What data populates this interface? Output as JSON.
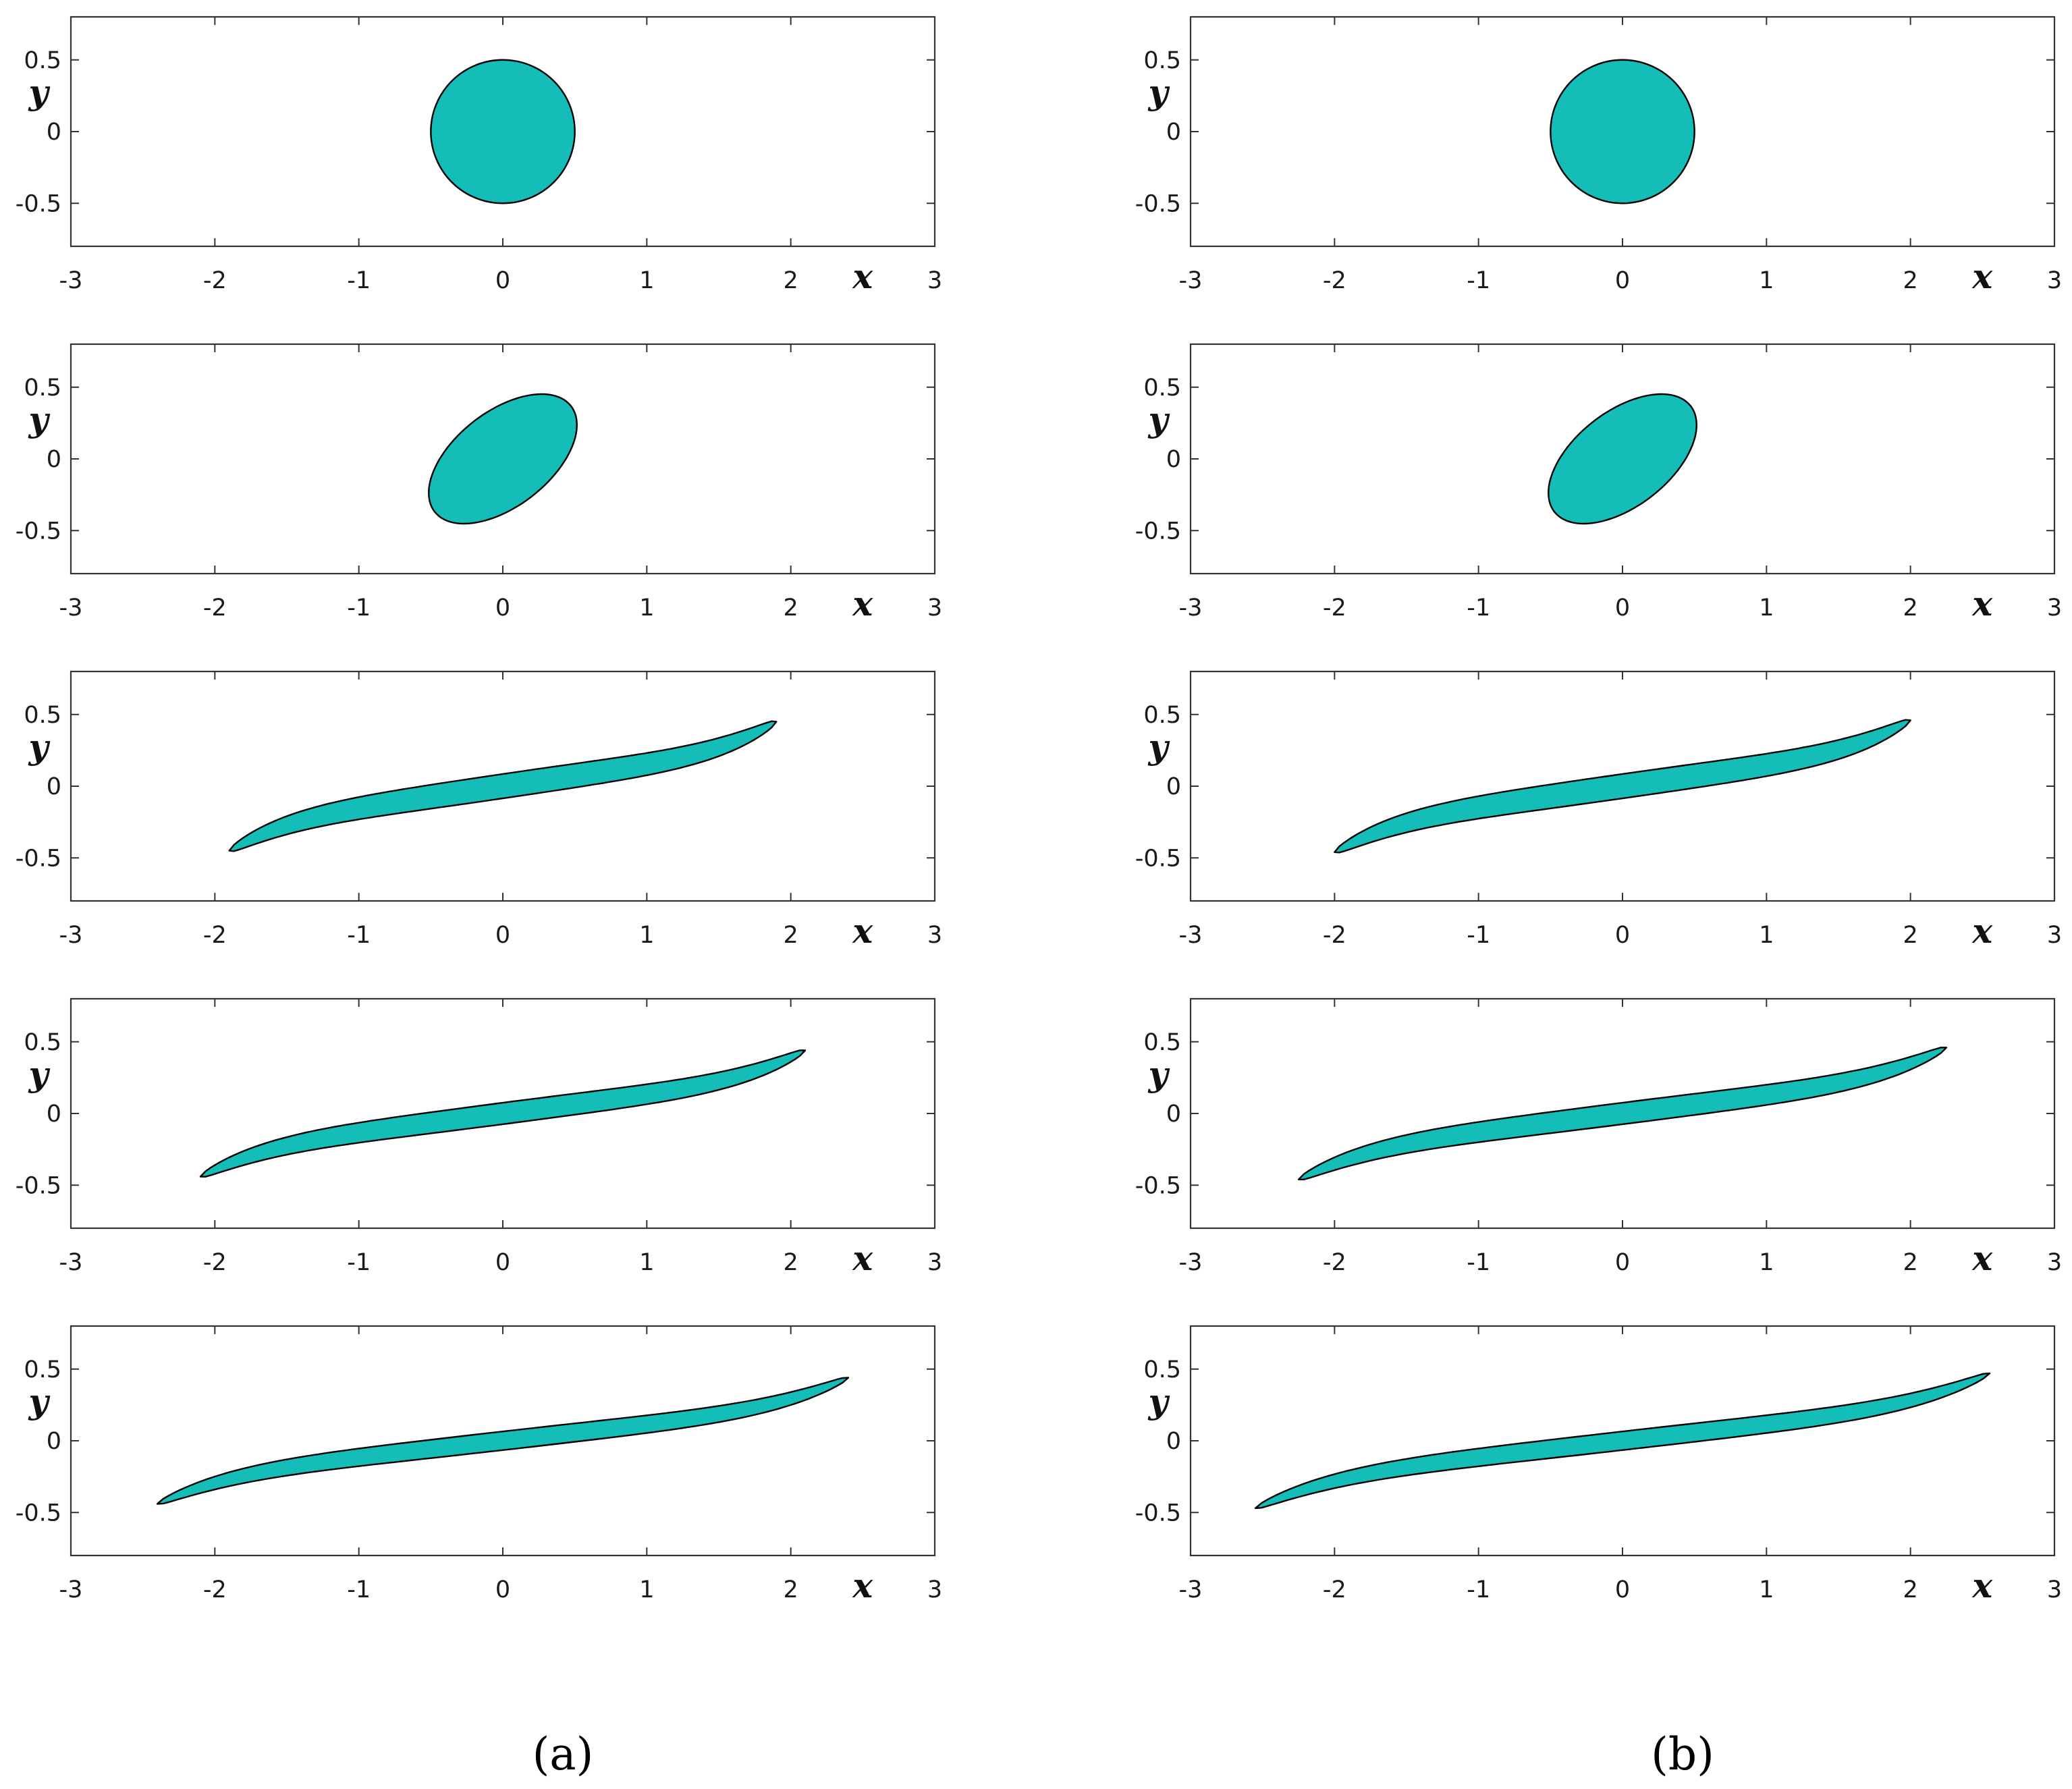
{
  "colors": {
    "fill": "#14bdb8",
    "stroke": "#000000",
    "axis": "#333333"
  },
  "panel_labels": [
    "(a)",
    "(b)"
  ],
  "chart_data": [
    {
      "type": "shape",
      "column": "a",
      "row": 1,
      "xlabel": "x",
      "ylabel": "y",
      "xlim": [
        -3,
        3
      ],
      "ylim": [
        -0.8,
        0.8
      ],
      "xticks": [
        "-3",
        "-2",
        "-1",
        "0",
        "1",
        "2",
        "3"
      ],
      "yticks": [
        "0.5",
        "0",
        "-0.5"
      ],
      "shape": {
        "kind": "circle",
        "center": [
          0,
          0
        ],
        "radius": 0.5
      }
    },
    {
      "type": "shape",
      "column": "a",
      "row": 2,
      "xlabel": "x",
      "ylabel": "y",
      "xlim": [
        -3,
        3
      ],
      "ylim": [
        -0.8,
        0.8
      ],
      "xticks": [
        "-3",
        "-2",
        "-1",
        "0",
        "1",
        "2",
        "3"
      ],
      "yticks": [
        "0.5",
        "0",
        "-0.5"
      ],
      "shape": {
        "kind": "ellipse",
        "center": [
          0,
          0
        ],
        "semi_axes": [
          0.6,
          0.33
        ],
        "angle_deg": 38
      }
    },
    {
      "type": "shape",
      "column": "a",
      "row": 3,
      "xlabel": "x",
      "ylabel": "y",
      "xlim": [
        -3,
        3
      ],
      "ylim": [
        -0.8,
        0.8
      ],
      "xticks": [
        "-3",
        "-2",
        "-1",
        "0",
        "1",
        "2",
        "3"
      ],
      "yticks": [
        "0.5",
        "0",
        "-0.5"
      ],
      "shape": {
        "kind": "filament",
        "tip_x": 1.9,
        "tip_y": 0.45,
        "thickness": 0.17
      }
    },
    {
      "type": "shape",
      "column": "a",
      "row": 4,
      "xlabel": "x",
      "ylabel": "y",
      "xlim": [
        -3,
        3
      ],
      "ylim": [
        -0.8,
        0.8
      ],
      "xticks": [
        "-3",
        "-2",
        "-1",
        "0",
        "1",
        "2",
        "3"
      ],
      "yticks": [
        "0.5",
        "0",
        "-0.5"
      ],
      "shape": {
        "kind": "filament",
        "tip_x": 2.1,
        "tip_y": 0.44,
        "thickness": 0.15
      }
    },
    {
      "type": "shape",
      "column": "a",
      "row": 5,
      "xlabel": "x",
      "ylabel": "y",
      "xlim": [
        -3,
        3
      ],
      "ylim": [
        -0.8,
        0.8
      ],
      "xticks": [
        "-3",
        "-2",
        "-1",
        "0",
        "1",
        "2",
        "3"
      ],
      "yticks": [
        "0.5",
        "0",
        "-0.5"
      ],
      "shape": {
        "kind": "filament",
        "tip_x": 2.4,
        "tip_y": 0.44,
        "thickness": 0.13
      }
    },
    {
      "type": "shape",
      "column": "b",
      "row": 1,
      "xlabel": "x",
      "ylabel": "y",
      "xlim": [
        -3,
        3
      ],
      "ylim": [
        -0.8,
        0.8
      ],
      "xticks": [
        "-3",
        "-2",
        "-1",
        "0",
        "1",
        "2",
        "3"
      ],
      "yticks": [
        "0.5",
        "0",
        "-0.5"
      ],
      "shape": {
        "kind": "circle",
        "center": [
          0,
          0
        ],
        "radius": 0.5
      }
    },
    {
      "type": "shape",
      "column": "b",
      "row": 2,
      "xlabel": "x",
      "ylabel": "y",
      "xlim": [
        -3,
        3
      ],
      "ylim": [
        -0.8,
        0.8
      ],
      "xticks": [
        "-3",
        "-2",
        "-1",
        "0",
        "1",
        "2",
        "3"
      ],
      "yticks": [
        "0.5",
        "0",
        "-0.5"
      ],
      "shape": {
        "kind": "ellipse",
        "center": [
          0,
          0
        ],
        "semi_axes": [
          0.6,
          0.33
        ],
        "angle_deg": 38
      }
    },
    {
      "type": "shape",
      "column": "b",
      "row": 3,
      "xlabel": "x",
      "ylabel": "y",
      "xlim": [
        -3,
        3
      ],
      "ylim": [
        -0.8,
        0.8
      ],
      "xticks": [
        "-3",
        "-2",
        "-1",
        "0",
        "1",
        "2",
        "3"
      ],
      "yticks": [
        "0.5",
        "0",
        "-0.5"
      ],
      "shape": {
        "kind": "filament",
        "tip_x": 2.0,
        "tip_y": 0.46,
        "thickness": 0.17
      }
    },
    {
      "type": "shape",
      "column": "b",
      "row": 4,
      "xlabel": "x",
      "ylabel": "y",
      "xlim": [
        -3,
        3
      ],
      "ylim": [
        -0.8,
        0.8
      ],
      "xticks": [
        "-3",
        "-2",
        "-1",
        "0",
        "1",
        "2",
        "3"
      ],
      "yticks": [
        "0.5",
        "0",
        "-0.5"
      ],
      "shape": {
        "kind": "filament",
        "tip_x": 2.25,
        "tip_y": 0.46,
        "thickness": 0.15
      }
    },
    {
      "type": "shape",
      "column": "b",
      "row": 5,
      "xlabel": "x",
      "ylabel": "y",
      "xlim": [
        -3,
        3
      ],
      "ylim": [
        -0.8,
        0.8
      ],
      "xticks": [
        "-3",
        "-2",
        "-1",
        "0",
        "1",
        "2",
        "3"
      ],
      "yticks": [
        "0.5",
        "0",
        "-0.5"
      ],
      "shape": {
        "kind": "filament",
        "tip_x": 2.55,
        "tip_y": 0.47,
        "thickness": 0.13
      }
    }
  ]
}
